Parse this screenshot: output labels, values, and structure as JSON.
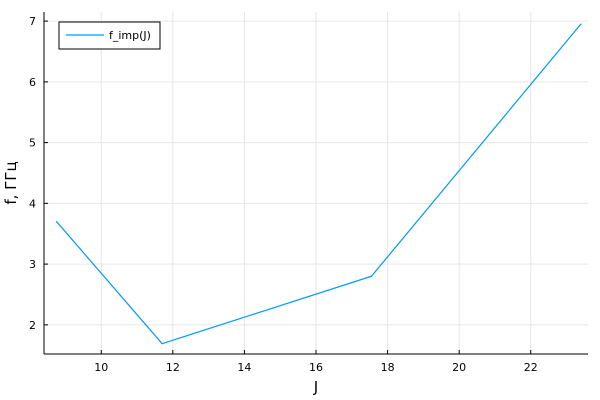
{
  "chart_data": {
    "type": "line",
    "xlabel": "J",
    "ylabel": "f, ГГц",
    "xlim": [
      8.4,
      23.6
    ],
    "ylim": [
      1.52,
      7.15
    ],
    "xticks": [
      10,
      12,
      14,
      16,
      18,
      20,
      22
    ],
    "yticks": [
      2,
      3,
      4,
      5,
      6,
      7
    ],
    "grid": true,
    "legend_position": "top-left",
    "series": [
      {
        "name": "f_imp(J)",
        "color": "#009af9",
        "x": [
          8.75,
          11.7,
          17.55,
          23.4
        ],
        "y": [
          3.7,
          1.69,
          2.8,
          6.95
        ]
      }
    ]
  }
}
